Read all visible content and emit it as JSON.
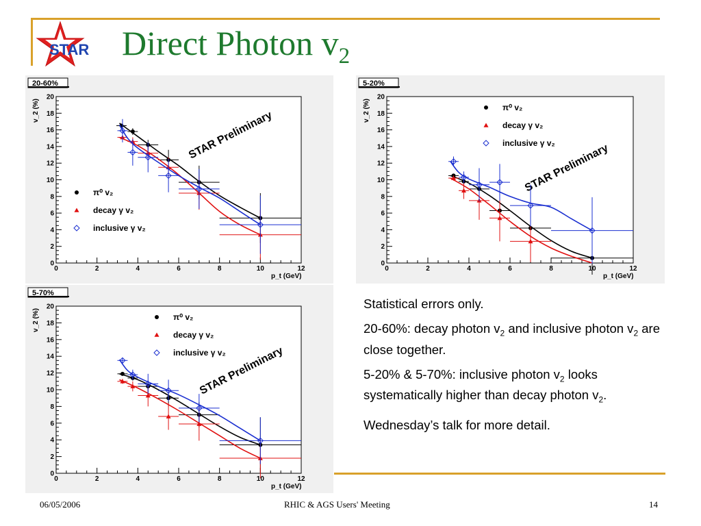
{
  "slide": {
    "title_main": "Direct Photon v",
    "title_sub": "2",
    "logo_text": "STAR",
    "footer_date": "06/05/2006",
    "footer_center": "RHIC & AGS Users' Meeting",
    "footer_page": "14",
    "notes": [
      {
        "segments": [
          {
            "t": "Statistical errors only."
          }
        ]
      },
      {
        "segments": [
          {
            "t": "20-60%: decay photon v"
          },
          {
            "s": "2"
          },
          {
            "t": " and inclusive photon v"
          },
          {
            "s": "2"
          },
          {
            "t": " are close together."
          }
        ]
      },
      {
        "segments": [
          {
            "t": "5-20% & 5-70%: inclusive photon v"
          },
          {
            "s": "2"
          },
          {
            "t": " looks systematically higher than decay photon v"
          },
          {
            "s": "2"
          },
          {
            "t": "."
          }
        ]
      },
      {
        "segments": [
          {
            "t": "Wednesday’s talk for more detail."
          }
        ]
      }
    ]
  },
  "colors": {
    "accent_gold": "#d9a12a",
    "title_green": "#1e7a2e",
    "pi0": "#000000",
    "decay": "#e01010",
    "inclusive": "#1a2fd0"
  },
  "chart_data": [
    {
      "type": "scatter",
      "panel_label": "20-60%",
      "watermark": "STAR Preliminary",
      "xlabel": "p_t (GeV)",
      "ylabel": "v_2 (%)",
      "xlim": [
        0,
        12
      ],
      "ylim": [
        0,
        20
      ],
      "xticks": [
        0,
        2,
        4,
        6,
        8,
        10,
        12
      ],
      "yticks": [
        0,
        2,
        4,
        6,
        8,
        10,
        12,
        14,
        16,
        18,
        20
      ],
      "legend": {
        "position": "bottom-left",
        "entries": [
          "π⁰ v₂",
          "decay γ v₂",
          "inclusive γ v₂"
        ]
      },
      "series": [
        {
          "name": "π⁰ v₂",
          "marker": "circle",
          "color": "#000000",
          "x": [
            3.2,
            3.75,
            4.5,
            5.5,
            7.0,
            10.0
          ],
          "y": [
            16.5,
            15.8,
            14.2,
            12.4,
            9.7,
            5.4
          ],
          "xerr": [
            0.25,
            0.25,
            0.5,
            0.5,
            1.0,
            2.0
          ],
          "yerr": [
            0.2,
            0.4,
            0.6,
            1.2,
            2.0,
            3.0
          ],
          "fit_x": [
            3.1,
            4,
            5,
            6,
            7,
            8,
            9,
            10
          ],
          "fit_y": [
            16.8,
            15.2,
            13.4,
            11.7,
            9.8,
            8.1,
            6.7,
            5.4
          ]
        },
        {
          "name": "decay γ v₂",
          "marker": "triangle",
          "color": "#e01010",
          "x": [
            3.25,
            3.75,
            4.5,
            5.5,
            7.0,
            10.0
          ],
          "y": [
            15.1,
            14.6,
            13.2,
            11.5,
            8.4,
            3.4
          ],
          "xerr": [
            0.25,
            0.25,
            0.5,
            0.5,
            1.0,
            2.0
          ],
          "yerr": [
            0.2,
            0.5,
            0.8,
            1.2,
            2.0,
            3.0
          ],
          "fit_x": [
            3.1,
            4,
            5,
            6,
            7,
            8,
            9,
            10
          ],
          "fit_y": [
            15.1,
            14.1,
            12.5,
            10.6,
            8.4,
            6.2,
            4.6,
            3.4
          ]
        },
        {
          "name": "inclusive γ v₂",
          "marker": "open-diamond",
          "color": "#1a2fd0",
          "x": [
            3.25,
            3.75,
            4.5,
            5.5,
            7.0,
            10.0
          ],
          "y": [
            15.9,
            13.3,
            12.7,
            10.5,
            8.9,
            4.6
          ],
          "xerr": [
            0.25,
            0.25,
            0.5,
            0.5,
            1.0,
            2.0
          ],
          "yerr": [
            1.4,
            1.6,
            1.8,
            2.0,
            2.4,
            3.5
          ],
          "fit_x": [
            3.1,
            3.5,
            4,
            5,
            6,
            7,
            8,
            9,
            10
          ],
          "fit_y": [
            16.6,
            15.0,
            13.8,
            12.1,
            10.5,
            9.1,
            7.8,
            6.2,
            4.6
          ]
        }
      ]
    },
    {
      "type": "scatter",
      "panel_label": "5-20%",
      "watermark": "STAR Preliminary",
      "xlabel": "p_t (GeV)",
      "ylabel": "v_2 (%)",
      "xlim": [
        0,
        12
      ],
      "ylim": [
        0,
        20
      ],
      "xticks": [
        0,
        2,
        4,
        6,
        8,
        10,
        12
      ],
      "yticks": [
        0,
        2,
        4,
        6,
        8,
        10,
        12,
        14,
        16,
        18,
        20
      ],
      "legend": {
        "position": "top-right",
        "entries": [
          "π⁰ v₂",
          "decay γ v₂",
          "inclusive γ v₂"
        ]
      },
      "series": [
        {
          "name": "π⁰ v₂",
          "marker": "circle",
          "color": "#000000",
          "x": [
            3.25,
            3.75,
            4.5,
            5.5,
            7.0,
            10.0
          ],
          "y": [
            10.5,
            9.8,
            8.9,
            6.3,
            4.2,
            0.6
          ],
          "xerr": [
            0.25,
            0.25,
            0.5,
            0.5,
            1.0,
            2.0
          ],
          "yerr": [
            0.2,
            0.5,
            1.2,
            1.6,
            2.6,
            2.0
          ],
          "fit_x": [
            3.1,
            4,
            5,
            6,
            7,
            8,
            9,
            10
          ],
          "fit_y": [
            10.5,
            9.6,
            8.1,
            6.3,
            4.4,
            2.7,
            1.4,
            0.6
          ]
        },
        {
          "name": "decay γ v₂",
          "marker": "triangle",
          "color": "#e01010",
          "x": [
            3.25,
            3.75,
            4.5,
            5.5,
            7.0
          ],
          "y": [
            10.2,
            8.7,
            7.5,
            5.4,
            2.6
          ],
          "xerr": [
            0.25,
            0.25,
            0.5,
            0.5,
            1.0
          ],
          "yerr": [
            0.3,
            1.0,
            2.3,
            2.8,
            2.5
          ],
          "fit_x": [
            3.1,
            4,
            5,
            6,
            7,
            8,
            9,
            10
          ],
          "fit_y": [
            10.2,
            8.9,
            7.0,
            5.0,
            3.2,
            1.8,
            0.8,
            0.0
          ]
        },
        {
          "name": "inclusive γ v₂",
          "marker": "open-diamond",
          "color": "#1a2fd0",
          "x": [
            3.25,
            3.75,
            4.5,
            5.5,
            7.0,
            10.0
          ],
          "y": [
            12.2,
            10.3,
            9.4,
            9.7,
            6.9,
            3.9
          ],
          "xerr": [
            0.25,
            0.25,
            0.5,
            0.5,
            1.0,
            2.0
          ],
          "yerr": [
            0.6,
            0.7,
            2.0,
            2.2,
            2.5,
            4.0
          ],
          "fit_x": [
            3.1,
            3.5,
            4,
            5,
            6,
            7,
            8,
            9,
            10
          ],
          "fit_y": [
            12.2,
            10.9,
            10.1,
            9.1,
            8.0,
            7.2,
            6.7,
            5.3,
            3.9
          ]
        }
      ]
    },
    {
      "type": "scatter",
      "panel_label": "5-70%",
      "watermark": "STAR Preliminary",
      "xlabel": "p_t (GeV)",
      "ylabel": "v_2 (%)",
      "xlim": [
        0,
        12
      ],
      "ylim": [
        0,
        20
      ],
      "xticks": [
        0,
        2,
        4,
        6,
        8,
        10,
        12
      ],
      "yticks": [
        0,
        2,
        4,
        6,
        8,
        10,
        12,
        14,
        16,
        18,
        20
      ],
      "legend": {
        "position": "top-center",
        "entries": [
          "π⁰ v₂",
          "decay γ v₂",
          "inclusive γ v₂"
        ]
      },
      "series": [
        {
          "name": "π⁰ v₂",
          "marker": "circle",
          "color": "#000000",
          "x": [
            3.25,
            3.75,
            4.5,
            5.5,
            7.0,
            10.0
          ],
          "y": [
            11.9,
            11.4,
            10.4,
            9.0,
            7.0,
            3.4
          ],
          "xerr": [
            0.25,
            0.25,
            0.5,
            0.5,
            1.0,
            2.0
          ],
          "yerr": [
            0.2,
            0.3,
            0.7,
            1.0,
            1.5,
            3.3
          ],
          "fit_x": [
            3.1,
            4,
            5,
            6,
            7,
            8,
            9,
            10
          ],
          "fit_y": [
            11.9,
            11.2,
            10.0,
            8.6,
            7.1,
            5.6,
            4.3,
            3.4
          ]
        },
        {
          "name": "decay γ v₂",
          "marker": "triangle",
          "color": "#e01010",
          "x": [
            3.25,
            3.75,
            4.5,
            5.5,
            7.0,
            10.0
          ],
          "y": [
            11.0,
            10.4,
            9.3,
            6.8,
            5.9,
            1.8
          ],
          "xerr": [
            0.25,
            0.25,
            0.5,
            0.5,
            1.0,
            2.0
          ],
          "yerr": [
            0.3,
            0.6,
            1.3,
            1.6,
            2.0,
            2.4
          ],
          "fit_x": [
            3.1,
            4,
            5,
            6,
            7,
            8,
            9,
            10
          ],
          "fit_y": [
            11.2,
            10.2,
            8.9,
            7.5,
            6.0,
            4.5,
            3.0,
            1.8
          ]
        },
        {
          "name": "inclusive γ v₂",
          "marker": "open-diamond",
          "color": "#1a2fd0",
          "x": [
            3.25,
            3.75,
            4.5,
            5.5,
            7.0,
            10.0
          ],
          "y": [
            13.5,
            11.8,
            10.7,
            9.9,
            7.8,
            3.9
          ],
          "xerr": [
            0.25,
            0.25,
            0.5,
            0.5,
            1.0,
            2.0
          ],
          "yerr": [
            0.3,
            0.6,
            1.2,
            1.3,
            1.7,
            2.8
          ],
          "fit_x": [
            3.1,
            3.5,
            4,
            5,
            6,
            7,
            8,
            9,
            10
          ],
          "fit_y": [
            13.6,
            12.3,
            11.5,
            10.4,
            9.4,
            8.2,
            6.9,
            5.4,
            3.9
          ]
        }
      ]
    }
  ]
}
